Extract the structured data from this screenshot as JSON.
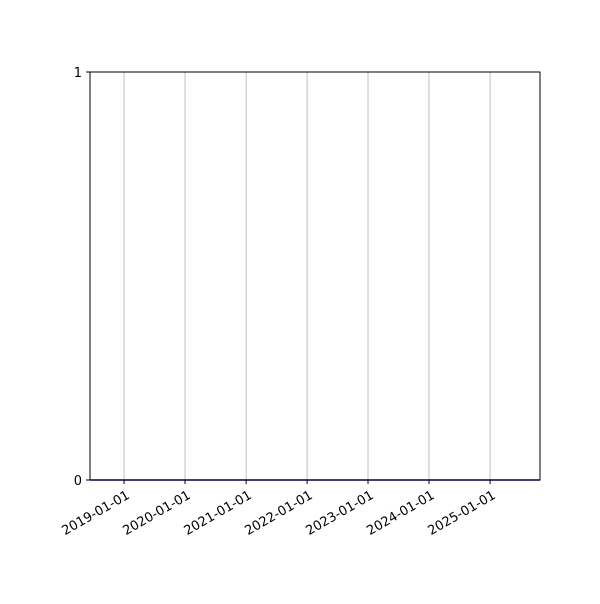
{
  "chart_data": {
    "type": "line",
    "title": "",
    "xlabel": "",
    "ylabel": "",
    "x_axis_type": "date",
    "xlim": [
      "2018-06-11",
      "2025-10-27"
    ],
    "ylim": [
      0,
      1
    ],
    "x_ticks": [
      "2019-01-01",
      "2020-01-01",
      "2021-01-01",
      "2022-01-01",
      "2023-01-01",
      "2024-01-01",
      "2025-01-01"
    ],
    "y_ticks": [
      0,
      1
    ],
    "y_tick_labels": [
      "0",
      "1"
    ],
    "grid": "x-major vertical lines",
    "legend": "none",
    "series": [
      {
        "color": "#0000cc",
        "x": [
          "2018-06-11",
          "2025-10-27"
        ],
        "y": [
          0,
          0
        ]
      }
    ],
    "colors": {
      "grid": "#b0b0b0",
      "axes": "#000000"
    }
  }
}
